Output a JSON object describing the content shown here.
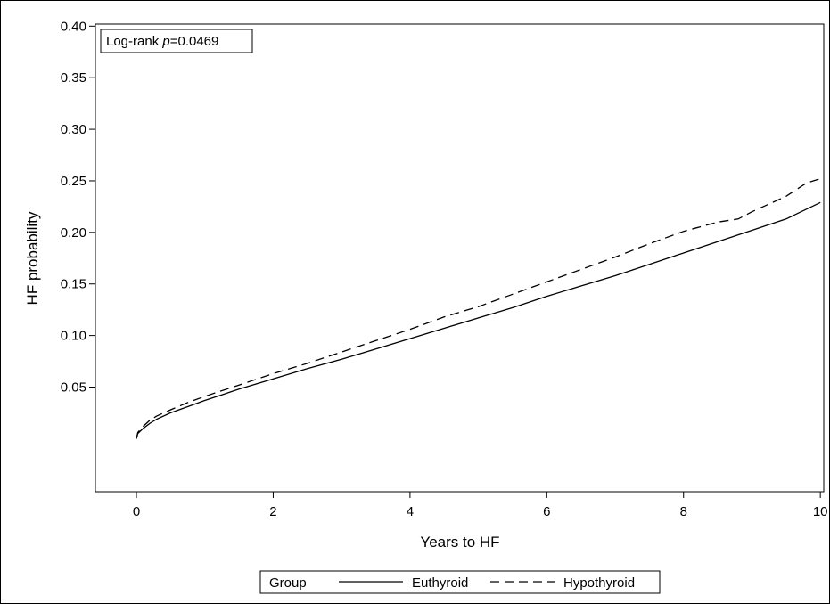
{
  "chart_data": {
    "type": "line",
    "annotation": {
      "prefix": "Log-rank ",
      "italic": "p",
      "suffix": "=0.0469"
    },
    "xlabel": "Years to HF",
    "ylabel": "HF probability",
    "xlim": [
      -0.6,
      10.05
    ],
    "ylim": [
      -0.0515,
      0.402
    ],
    "xticks": [
      0,
      2,
      4,
      6,
      8,
      10
    ],
    "xtick_labels": [
      "0",
      "2",
      "4",
      "6",
      "8",
      "10"
    ],
    "yticks": [
      0.05,
      0.1,
      0.15,
      0.2,
      0.25,
      0.3,
      0.35,
      0.4
    ],
    "ytick_labels": [
      "0.05",
      "0.10",
      "0.15",
      "0.20",
      "0.25",
      "0.30",
      "0.35",
      "0.40"
    ],
    "grid": false,
    "legend": {
      "title": "Group",
      "position": "bottom"
    },
    "series": [
      {
        "name": "Euthyroid",
        "style": "solid",
        "color": "#000000",
        "x": [
          0,
          0.02,
          0.1,
          0.2,
          0.3,
          0.5,
          0.75,
          1.0,
          1.5,
          2.0,
          2.5,
          3.0,
          3.5,
          4.0,
          4.5,
          5.0,
          5.5,
          6.0,
          6.5,
          7.0,
          7.5,
          8.0,
          8.5,
          9.0,
          9.5,
          10.0
        ],
        "y": [
          0.0,
          0.005,
          0.01,
          0.015,
          0.019,
          0.025,
          0.031,
          0.037,
          0.048,
          0.058,
          0.068,
          0.077,
          0.087,
          0.097,
          0.107,
          0.117,
          0.127,
          0.138,
          0.148,
          0.158,
          0.169,
          0.18,
          0.191,
          0.202,
          0.213,
          0.229
        ]
      },
      {
        "name": "Hypothyroid",
        "style": "dashed",
        "color": "#000000",
        "x": [
          0,
          0.02,
          0.1,
          0.2,
          0.3,
          0.5,
          0.75,
          1.0,
          1.5,
          2.0,
          2.5,
          3.0,
          3.5,
          4.0,
          4.5,
          5.0,
          5.5,
          6.0,
          6.5,
          7.0,
          7.5,
          8.0,
          8.5,
          8.8,
          9.0,
          9.5,
          9.8,
          10.0
        ],
        "y": [
          0.0,
          0.006,
          0.012,
          0.018,
          0.022,
          0.028,
          0.035,
          0.041,
          0.052,
          0.063,
          0.073,
          0.084,
          0.095,
          0.106,
          0.118,
          0.128,
          0.14,
          0.152,
          0.164,
          0.176,
          0.189,
          0.201,
          0.21,
          0.213,
          0.22,
          0.235,
          0.248,
          0.252
        ]
      }
    ]
  }
}
